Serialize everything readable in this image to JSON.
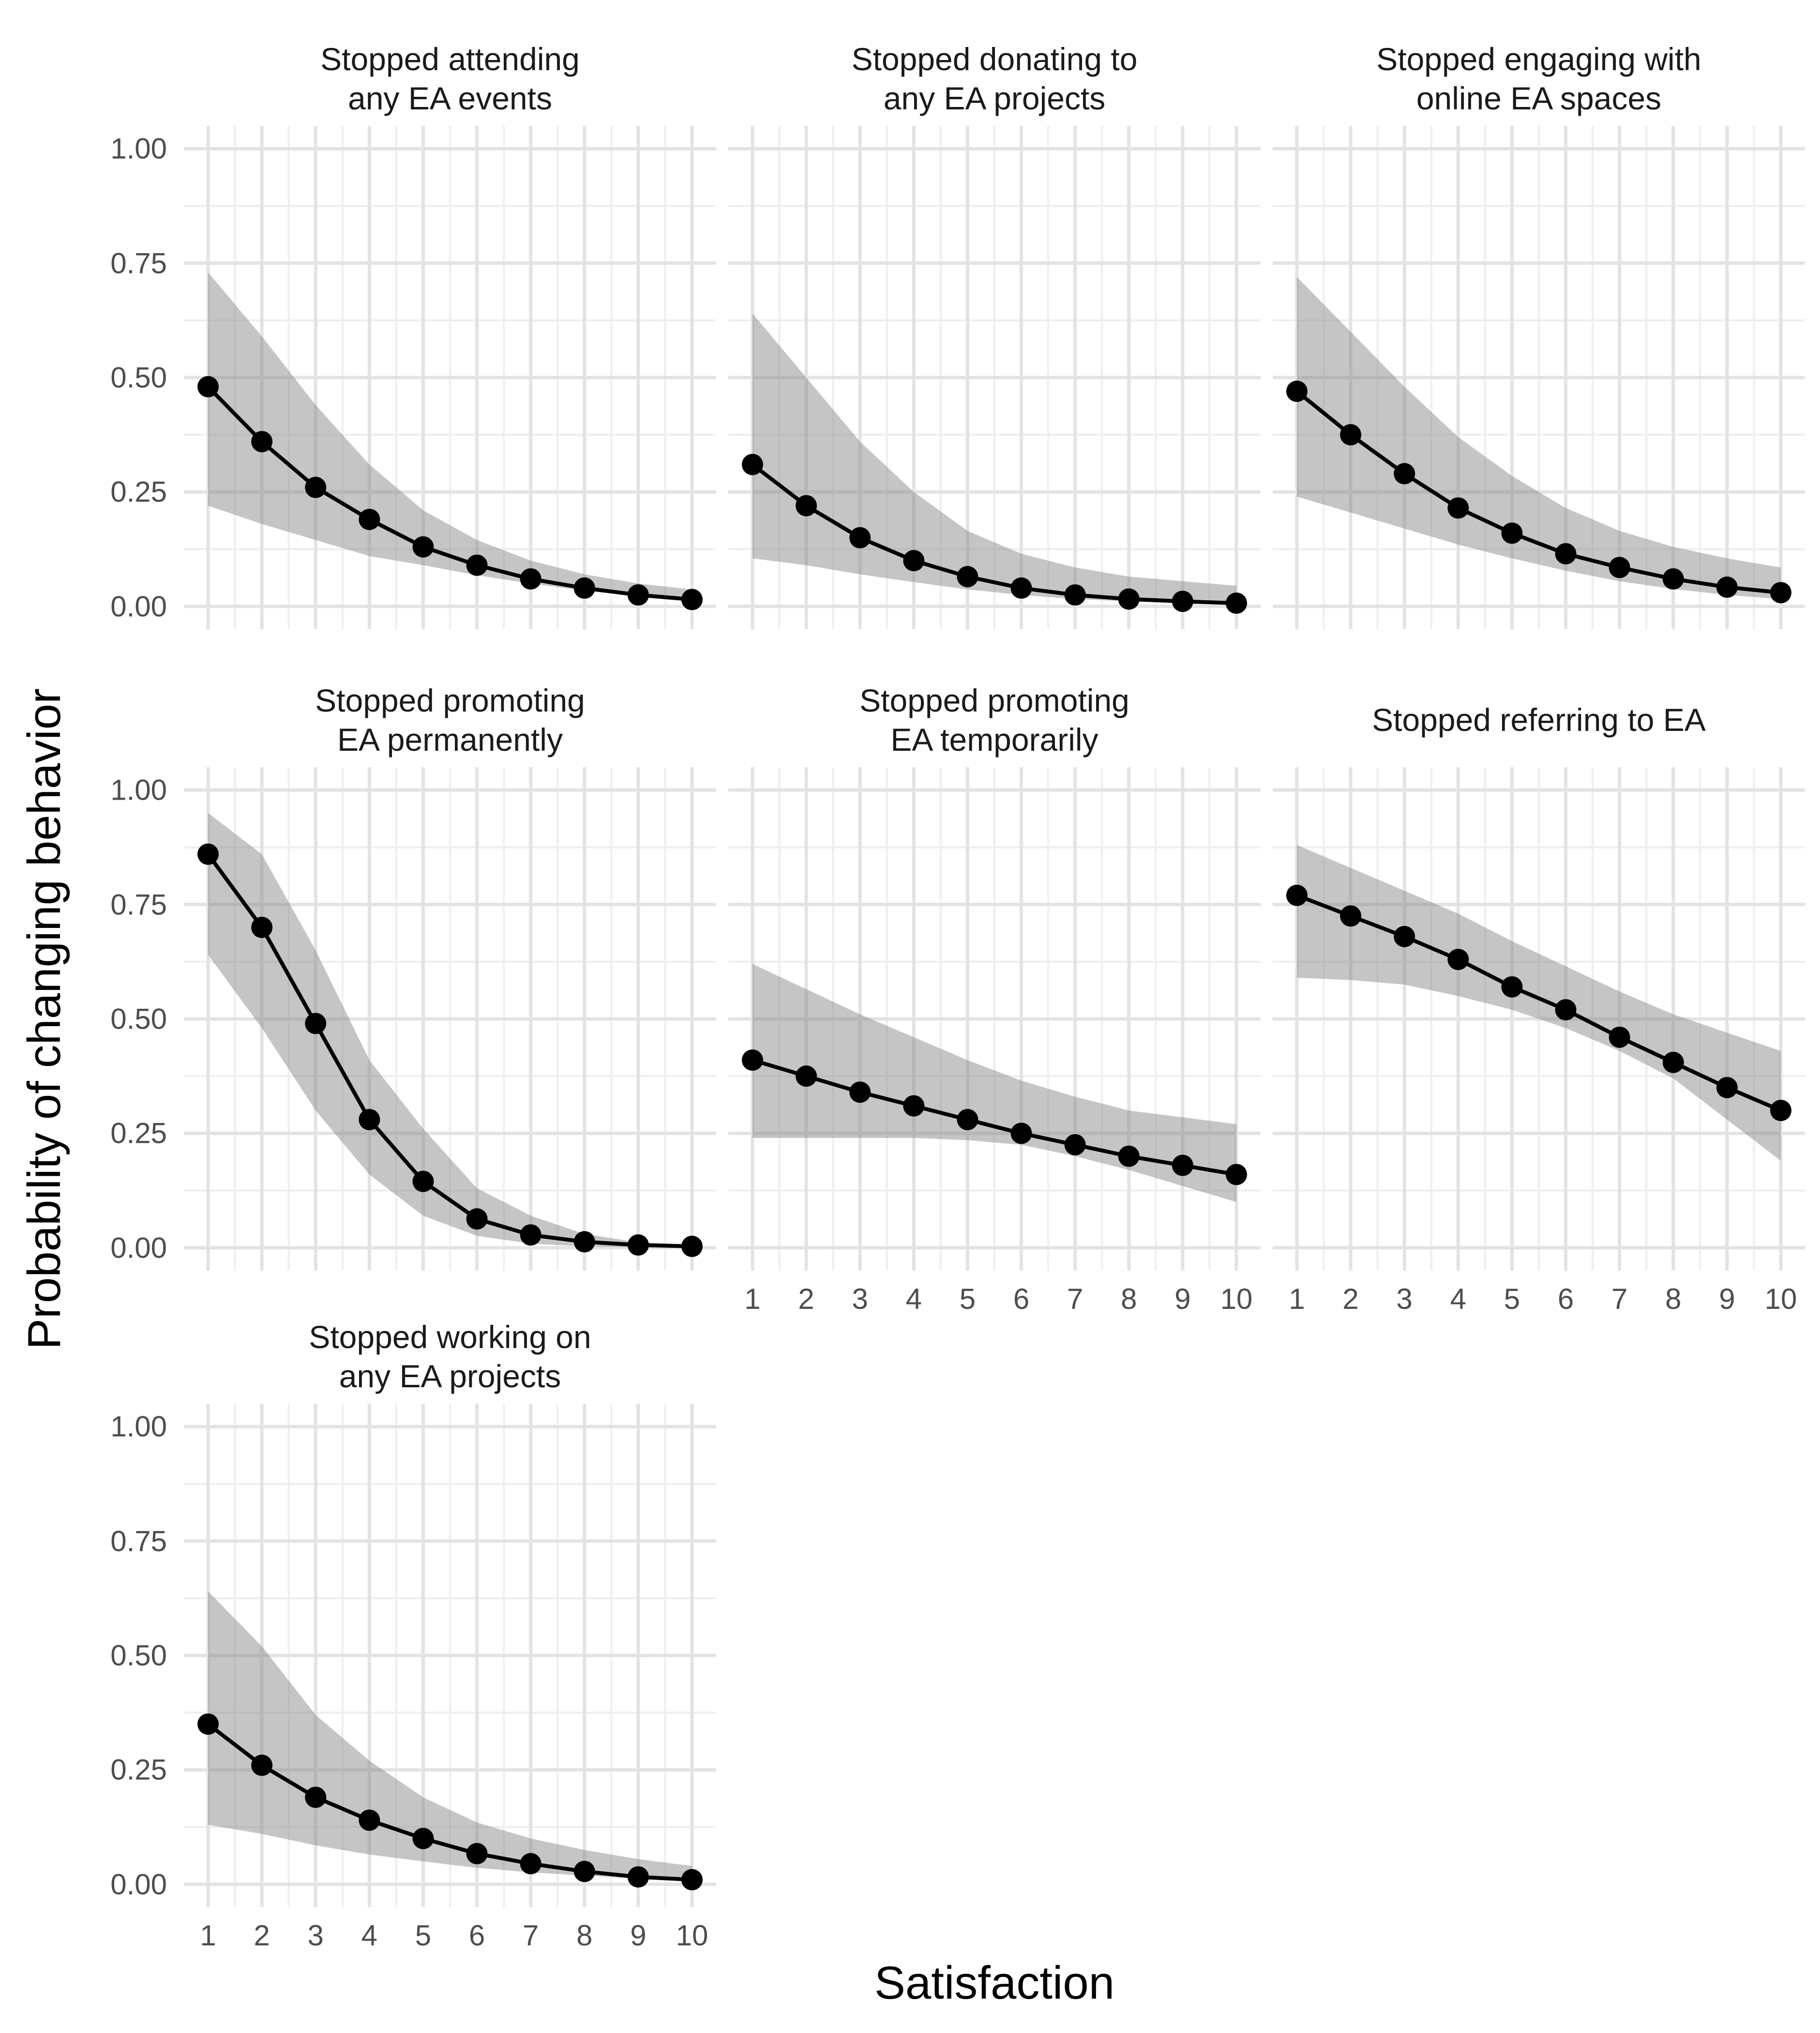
{
  "style": {
    "background": "#ffffff",
    "grid_major": "#e3e3e3",
    "grid_minor": "#eeeeee",
    "ribbon_fill": "#7f7f7f",
    "ribbon_opacity": 0.45,
    "line_color": "#000000",
    "point_color": "#000000",
    "tick_text": "#4d4d4d",
    "strip_text": "#1a1a1a"
  },
  "chart_data": {
    "type": "line",
    "xlabel": "Satisfaction",
    "ylabel": "Probability of changing behavior",
    "x": [
      1,
      2,
      3,
      4,
      5,
      6,
      7,
      8,
      9,
      10
    ],
    "x_tick_labels": [
      "1",
      "2",
      "3",
      "4",
      "5",
      "6",
      "7",
      "8",
      "9",
      "10"
    ],
    "y_tick_values": [
      1.0,
      0.75,
      0.5,
      0.25,
      0.0
    ],
    "y_tick_labels": [
      "1.00",
      "0.75",
      "0.50",
      "0.25",
      "0.00"
    ],
    "xlim": [
      0.55,
      10.45
    ],
    "ylim": [
      -0.05,
      1.05
    ],
    "grid": "major and minor gridlines, no axis lines, white background",
    "legend": "none",
    "facets": [
      {
        "title": "Stopped attending\nany EA events",
        "show_y_ticks": true,
        "show_x_ticks": false,
        "values": [
          0.48,
          0.36,
          0.26,
          0.19,
          0.13,
          0.09,
          0.06,
          0.04,
          0.025,
          0.015
        ],
        "ci_lower": [
          0.22,
          0.18,
          0.145,
          0.11,
          0.09,
          0.068,
          0.05,
          0.034,
          0.023,
          0.014
        ],
        "ci_upper": [
          0.73,
          0.59,
          0.44,
          0.31,
          0.21,
          0.145,
          0.1,
          0.07,
          0.05,
          0.037
        ]
      },
      {
        "title": "Stopped donating to\nany EA projects",
        "show_y_ticks": false,
        "show_x_ticks": false,
        "values": [
          0.31,
          0.22,
          0.15,
          0.1,
          0.065,
          0.04,
          0.025,
          0.016,
          0.011,
          0.007
        ],
        "ci_lower": [
          0.105,
          0.09,
          0.07,
          0.053,
          0.037,
          0.025,
          0.016,
          0.011,
          0.006,
          0.004
        ],
        "ci_upper": [
          0.64,
          0.5,
          0.36,
          0.25,
          0.165,
          0.115,
          0.085,
          0.065,
          0.055,
          0.045
        ]
      },
      {
        "title": "Stopped engaging with\nonline EA spaces",
        "show_y_ticks": false,
        "show_x_ticks": false,
        "values": [
          0.47,
          0.375,
          0.29,
          0.215,
          0.16,
          0.115,
          0.085,
          0.06,
          0.042,
          0.03
        ],
        "ci_lower": [
          0.24,
          0.205,
          0.17,
          0.135,
          0.105,
          0.078,
          0.055,
          0.038,
          0.025,
          0.016
        ],
        "ci_upper": [
          0.72,
          0.6,
          0.48,
          0.37,
          0.285,
          0.215,
          0.165,
          0.13,
          0.105,
          0.085
        ]
      },
      {
        "title": "Stopped promoting\nEA permanently",
        "show_y_ticks": true,
        "show_x_ticks": false,
        "values": [
          0.86,
          0.7,
          0.49,
          0.28,
          0.145,
          0.063,
          0.028,
          0.013,
          0.006,
          0.003
        ],
        "ci_lower": [
          0.64,
          0.48,
          0.3,
          0.16,
          0.07,
          0.026,
          0.009,
          0.003,
          0.001,
          0.0005
        ],
        "ci_upper": [
          0.95,
          0.86,
          0.65,
          0.41,
          0.26,
          0.13,
          0.07,
          0.03,
          0.012,
          0.007
        ]
      },
      {
        "title": "Stopped promoting\nEA temporarily",
        "show_y_ticks": false,
        "show_x_ticks": true,
        "values": [
          0.41,
          0.375,
          0.34,
          0.31,
          0.28,
          0.25,
          0.225,
          0.2,
          0.18,
          0.16
        ],
        "ci_lower": [
          0.24,
          0.24,
          0.24,
          0.24,
          0.235,
          0.225,
          0.2,
          0.17,
          0.135,
          0.1
        ],
        "ci_upper": [
          0.62,
          0.565,
          0.51,
          0.46,
          0.41,
          0.365,
          0.33,
          0.3,
          0.285,
          0.27
        ]
      },
      {
        "title": "Stopped referring to EA",
        "show_y_ticks": false,
        "show_x_ticks": true,
        "values": [
          0.77,
          0.725,
          0.68,
          0.63,
          0.57,
          0.52,
          0.46,
          0.405,
          0.35,
          0.3
        ],
        "ci_lower": [
          0.59,
          0.585,
          0.575,
          0.55,
          0.52,
          0.48,
          0.43,
          0.37,
          0.28,
          0.19
        ],
        "ci_upper": [
          0.88,
          0.83,
          0.78,
          0.73,
          0.67,
          0.615,
          0.56,
          0.51,
          0.47,
          0.43
        ]
      },
      {
        "title": "Stopped working on\nany EA projects",
        "show_y_ticks": true,
        "show_x_ticks": true,
        "values": [
          0.35,
          0.26,
          0.19,
          0.14,
          0.1,
          0.067,
          0.045,
          0.028,
          0.016,
          0.01
        ],
        "ci_lower": [
          0.13,
          0.11,
          0.085,
          0.065,
          0.05,
          0.036,
          0.026,
          0.019,
          0.012,
          0.008
        ],
        "ci_upper": [
          0.64,
          0.52,
          0.37,
          0.27,
          0.19,
          0.135,
          0.1,
          0.075,
          0.055,
          0.04
        ]
      }
    ]
  }
}
